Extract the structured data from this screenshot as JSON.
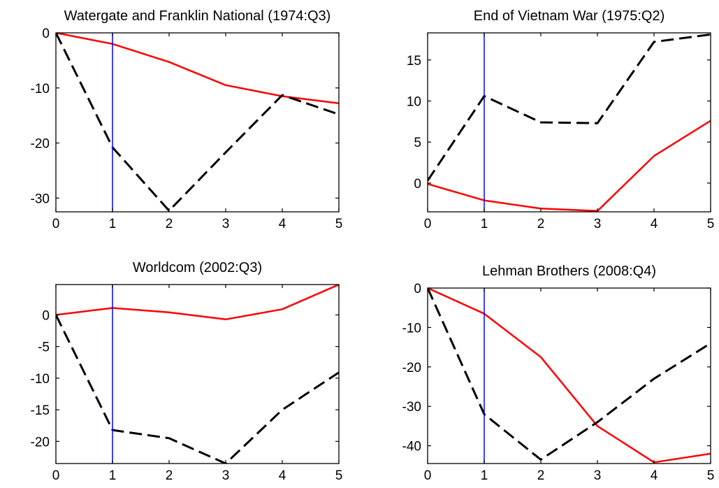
{
  "colors": {
    "red_series": "#ff0000",
    "black_series": "#000000",
    "marker_line": "#0000ff"
  },
  "chart_data": [
    {
      "type": "line",
      "title": "Watergate and Franklin National (1974:Q3)",
      "xlim": [
        0,
        5
      ],
      "ylim": [
        -32.5,
        0
      ],
      "xticks": [
        0,
        1,
        2,
        3,
        4,
        5
      ],
      "yticks": [
        0,
        -10,
        -20,
        -30
      ],
      "x": [
        0,
        1,
        2,
        3,
        4,
        5
      ],
      "series": [
        {
          "color": "red",
          "style": "solid",
          "values": [
            0,
            -2,
            -5.3,
            -9.5,
            -11.5,
            -12.8
          ]
        },
        {
          "color": "black",
          "style": "dashed",
          "values": [
            0,
            -20.8,
            -32.3,
            -21.7,
            -11.3,
            -14.8
          ]
        }
      ],
      "vline": 1,
      "grid": false
    },
    {
      "type": "line",
      "title": "End of Vietnam War (1975:Q2)",
      "xlim": [
        0,
        5
      ],
      "ylim": [
        -3.5,
        18.3
      ],
      "xticks": [
        0,
        1,
        2,
        3,
        4,
        5
      ],
      "yticks": [
        0,
        5,
        10,
        15
      ],
      "x": [
        0,
        1,
        2,
        3,
        4,
        5
      ],
      "series": [
        {
          "color": "red",
          "style": "solid",
          "values": [
            -0.1,
            -2.1,
            -3.1,
            -3.4,
            3.3,
            7.6
          ]
        },
        {
          "color": "black",
          "style": "dashed",
          "values": [
            0.3,
            10.6,
            7.4,
            7.3,
            17.2,
            18.1
          ]
        }
      ],
      "vline": 1,
      "grid": false
    },
    {
      "type": "line",
      "title": "Worldcom (2002:Q3)",
      "xlim": [
        0,
        5
      ],
      "ylim": [
        -23.5,
        4.8
      ],
      "xticks": [
        0,
        1,
        2,
        3,
        4,
        5
      ],
      "yticks": [
        0,
        -5,
        -10,
        -15,
        -20
      ],
      "x": [
        0,
        1,
        2,
        3,
        4,
        5
      ],
      "series": [
        {
          "color": "red",
          "style": "solid",
          "values": [
            0,
            1.1,
            0.4,
            -0.7,
            0.9,
            4.8
          ]
        },
        {
          "color": "black",
          "style": "dashed",
          "values": [
            0,
            -18.2,
            -19.5,
            -23.5,
            -15,
            -9.1
          ]
        }
      ],
      "vline": 1,
      "grid": false
    },
    {
      "type": "line",
      "title": "Lehman Brothers (2008:Q4)",
      "xlim": [
        0,
        5
      ],
      "ylim": [
        -44.5,
        0
      ],
      "xticks": [
        0,
        1,
        2,
        3,
        4,
        5
      ],
      "yticks": [
        0,
        -10,
        -20,
        -30,
        -40
      ],
      "x": [
        0,
        1,
        2,
        3,
        4,
        5
      ],
      "series": [
        {
          "color": "red",
          "style": "solid",
          "values": [
            0,
            -6.5,
            -17.5,
            -35,
            -44.2,
            -42
          ]
        },
        {
          "color": "black",
          "style": "dashed",
          "values": [
            0,
            -32,
            -43.5,
            -34,
            -23,
            -14
          ]
        }
      ],
      "vline": 1,
      "grid": false
    }
  ]
}
